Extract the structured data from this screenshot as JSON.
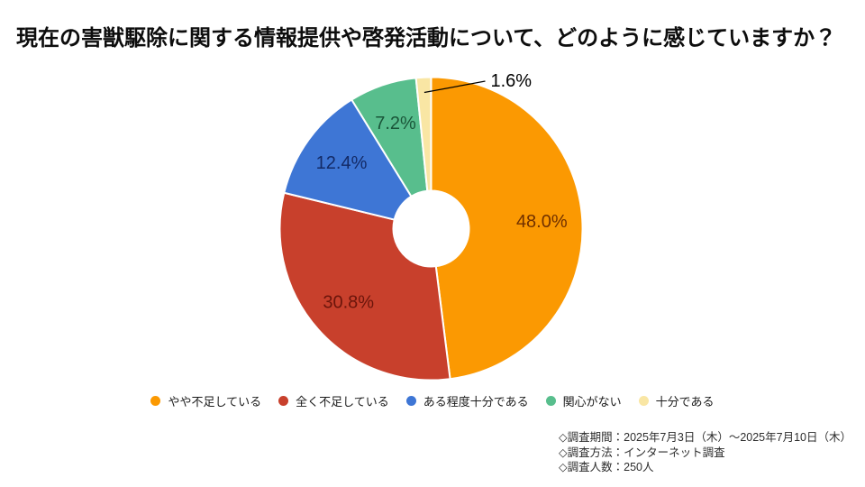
{
  "title": "現在の害獣駆除に関する情報提供や啓発活動について、どのように感じていますか？",
  "chart_data": {
    "type": "pie",
    "subtype": "donut",
    "title": "現在の害獣駆除に関する情報提供や啓発活動について、どのように感じていますか？",
    "unit": "%",
    "total": 100,
    "start_angle_deg": 0,
    "direction": "clockwise",
    "legend_position": "bottom",
    "categories": [
      "やや不足している",
      "全く不足している",
      "ある程度十分である",
      "関心がない",
      "十分である"
    ],
    "values": [
      48.0,
      30.8,
      12.4,
      7.2,
      1.6
    ],
    "value_labels": [
      "48.0%",
      "30.8%",
      "12.4%",
      "7.2%",
      "1.6%"
    ],
    "colors": [
      "#FB9902",
      "#C8402C",
      "#3E76D5",
      "#58BE8D",
      "#F9E6A4"
    ],
    "value_label_colors": [
      "#703000",
      "#6B150B",
      "#132A66",
      "#1A5539",
      "#000000"
    ],
    "slice_border_color": "#ffffff"
  },
  "footnotes": [
    "◇調査期間：2025年7月3日（木）～2025年7月10日（木）",
    "◇調査方法：インターネット調査",
    "◇調査人数：250人"
  ]
}
